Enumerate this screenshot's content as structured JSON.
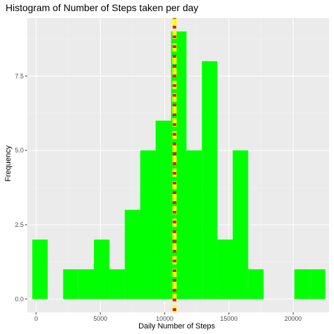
{
  "chart_data": {
    "type": "bar",
    "title": "Histogram of Number of Steps taken per day",
    "xlabel": "Daily Number of Steps",
    "ylabel": "Frequency",
    "xlim": [
      -700,
      22800
    ],
    "ylim": [
      -0.45,
      9.45
    ],
    "x_ticks": [
      0,
      5000,
      10000,
      15000,
      20000
    ],
    "x_tick_labels": [
      "0",
      "5000",
      "10000",
      "15000",
      "20000"
    ],
    "y_ticks": [
      0,
      2.5,
      5,
      7.5
    ],
    "y_tick_labels": [
      "0.0",
      "2.5",
      "5.0",
      "7.5"
    ],
    "bin_width": 1200,
    "bins": [
      {
        "x_start": -300,
        "x_end": 900,
        "count": 2
      },
      {
        "x_start": 900,
        "x_end": 2100,
        "count": 0
      },
      {
        "x_start": 2100,
        "x_end": 3300,
        "count": 1
      },
      {
        "x_start": 3300,
        "x_end": 4500,
        "count": 1
      },
      {
        "x_start": 4500,
        "x_end": 5700,
        "count": 2
      },
      {
        "x_start": 5700,
        "x_end": 6900,
        "count": 1
      },
      {
        "x_start": 6900,
        "x_end": 8100,
        "count": 3
      },
      {
        "x_start": 8100,
        "x_end": 9300,
        "count": 5
      },
      {
        "x_start": 9300,
        "x_end": 10500,
        "count": 6
      },
      {
        "x_start": 10500,
        "x_end": 11700,
        "count": 9
      },
      {
        "x_start": 11700,
        "x_end": 12900,
        "count": 5
      },
      {
        "x_start": 12900,
        "x_end": 14100,
        "count": 8
      },
      {
        "x_start": 14100,
        "x_end": 15300,
        "count": 2
      },
      {
        "x_start": 15300,
        "x_end": 16500,
        "count": 5
      },
      {
        "x_start": 16500,
        "x_end": 17700,
        "count": 1
      },
      {
        "x_start": 17700,
        "x_end": 18900,
        "count": 0
      },
      {
        "x_start": 18900,
        "x_end": 20100,
        "count": 0
      },
      {
        "x_start": 20100,
        "x_end": 21300,
        "count": 1
      },
      {
        "x_start": 21300,
        "x_end": 22500,
        "count": 1
      }
    ],
    "vlines": [
      {
        "x": 10766,
        "color": "#ffff00",
        "style": "dashed"
      },
      {
        "x": 10766,
        "color": "#e31a1c",
        "style": "dotted"
      }
    ],
    "grid": true,
    "legend": "none",
    "colors": {
      "bar_fill": "#00ff00",
      "panel_bg": "#ebebeb",
      "grid_major": "#ffffff",
      "grid_minor": "#f5f5f5"
    }
  }
}
